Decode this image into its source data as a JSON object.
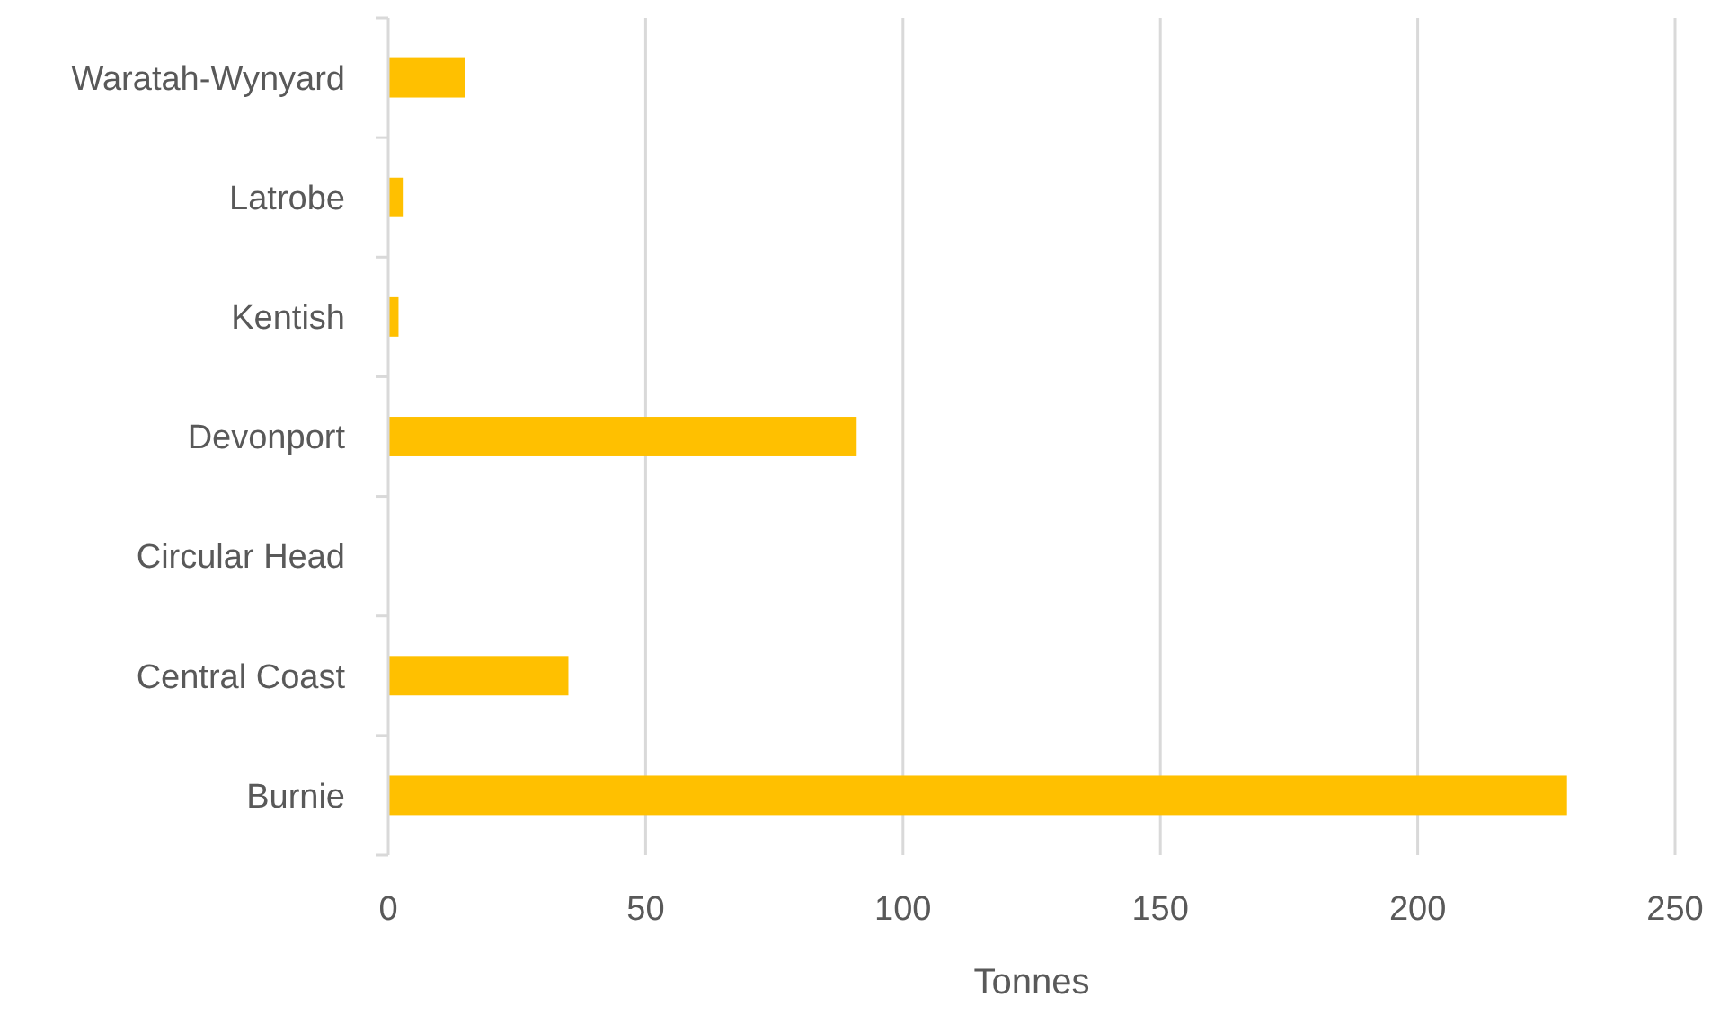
{
  "chart_data": {
    "type": "bar",
    "orientation": "horizontal",
    "xlabel": "Tonnes",
    "categories": [
      "Waratah-Wynyard",
      "Latrobe",
      "Kentish",
      "Devonport",
      "Circular Head",
      "Central Coast",
      "Burnie"
    ],
    "values": [
      15,
      3,
      2,
      91,
      0,
      35,
      229
    ],
    "color": "#ffc000",
    "xlim": [
      0,
      250
    ],
    "xticks": [
      0,
      50,
      100,
      150,
      200,
      250
    ],
    "grid": "x"
  }
}
